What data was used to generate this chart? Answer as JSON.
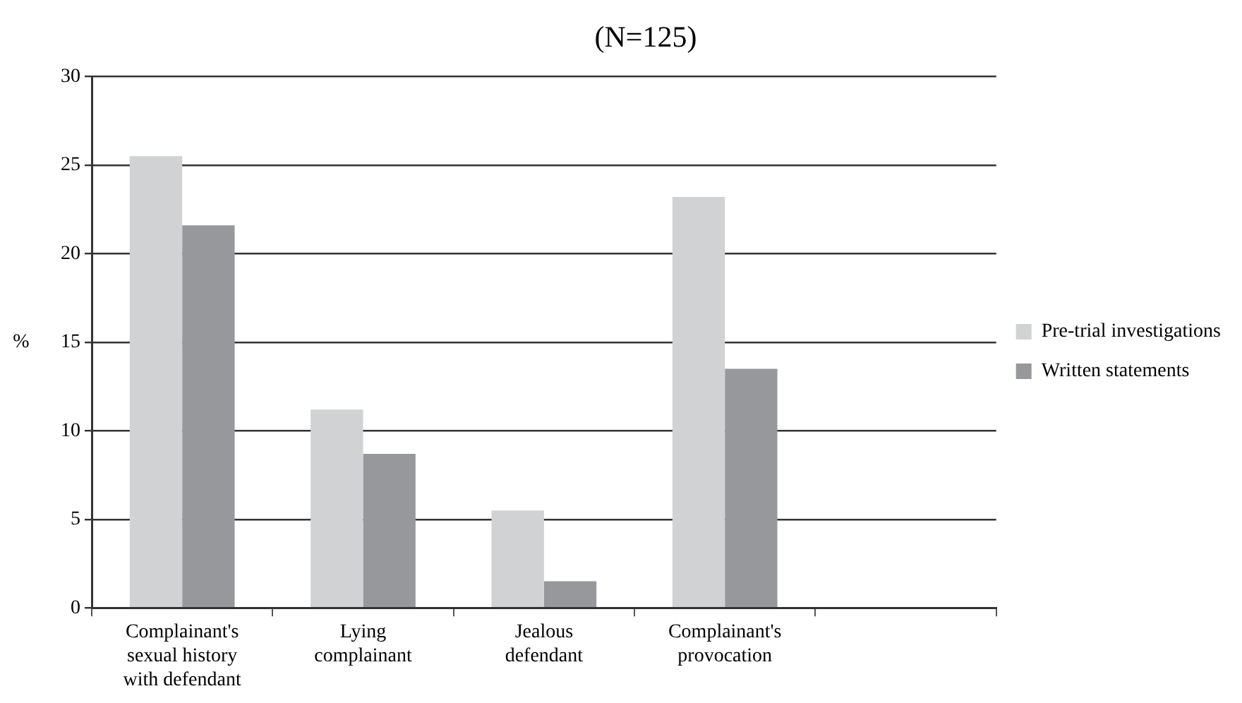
{
  "chart_data": {
    "type": "bar",
    "title": "(N=125)",
    "ylabel": "%",
    "categories": [
      "Complainant's sexual history with defendant",
      "Lying complainant",
      "Jealous defendant",
      "Complainant's provocation",
      null
    ],
    "series": [
      {
        "name": "Pre-trial investigations",
        "color": "#d1d2d4",
        "values": [
          25.5,
          11.2,
          5.5,
          23.2,
          null
        ]
      },
      {
        "name": "Written statements",
        "color": "#97989c",
        "values": [
          21.6,
          8.7,
          1.5,
          13.5,
          null
        ]
      }
    ],
    "ylim": [
      0,
      30
    ],
    "yticks": [
      0,
      5,
      10,
      15,
      20,
      25,
      30
    ],
    "grid": "y",
    "legend": "right"
  }
}
